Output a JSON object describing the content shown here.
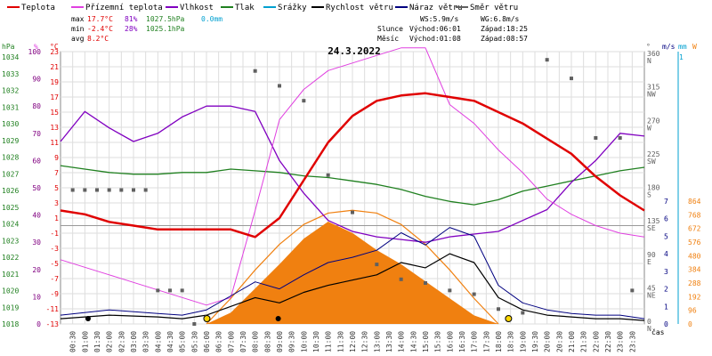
{
  "chart_data": {
    "type": "line",
    "title": "24.3.2022",
    "legend": [
      {
        "name": "Teplota",
        "color": "#e00000"
      },
      {
        "name": "Přízemní teplota",
        "color": "#e040e0"
      },
      {
        "name": "Vlhkost",
        "color": "#8000c0"
      },
      {
        "name": "Tlak",
        "color": "#208020"
      },
      {
        "name": "Srážky",
        "color": "#00a0d0"
      },
      {
        "name": "Rychlost větru",
        "color": "#000000"
      },
      {
        "name": "Náraz větru",
        "color": "#000080"
      },
      {
        "name": "Směr větru",
        "color": "#606060"
      }
    ],
    "stats": {
      "max": {
        "label": "max",
        "temp": "17.7°C",
        "hum": "81%",
        "press": "1027.5hPa",
        "rain": "0.0mm"
      },
      "min": {
        "label": "min",
        "temp": "-2.4°C",
        "hum": "28%",
        "press": "1025.1hPa"
      },
      "avg": {
        "label": "avg",
        "temp": "8.2°C"
      }
    },
    "wind_info": {
      "ws": "WS:5.9m/s",
      "wg": "WG:6.8m/s"
    },
    "sun_info": {
      "label": "Slunce",
      "rise": "Východ:06:01",
      "set": "Západ:18:25"
    },
    "moon_info": {
      "label": "Měsíc",
      "rise": "Východ:01:08",
      "set": "Západ:08:57"
    },
    "axes": {
      "hpa": {
        "unit": "hPa",
        "ticks": [
          "1034",
          "1033",
          "1032",
          "1031",
          "1030",
          "1029",
          "1028",
          "1027",
          "1026",
          "1025",
          "1024",
          "1023",
          "1022",
          "1021",
          "1020",
          "1019",
          "1018"
        ]
      },
      "pct": {
        "unit": "%",
        "ticks": [
          "100",
          "90",
          "80",
          "70",
          "60",
          "50",
          "40",
          "30",
          "20",
          "10",
          "0"
        ]
      },
      "temp": {
        "unit": "°C",
        "ticks": [
          "23",
          "21",
          "19",
          "17",
          "15",
          "13",
          "11",
          "9",
          "7",
          "5",
          "3",
          "1",
          "-1",
          "-3",
          "-5",
          "-7",
          "-9",
          "-11",
          "-13"
        ]
      },
      "dir": {
        "unit": "°",
        "ticks": [
          {
            "v": "360",
            "c": "N"
          },
          {
            "v": "315",
            "c": "NW"
          },
          {
            "v": "270",
            "c": "W"
          },
          {
            "v": "225",
            "c": "SW"
          },
          {
            "v": "180",
            "c": "S"
          },
          {
            "v": "135",
            "c": "SE"
          },
          {
            "v": "90",
            "c": "E"
          },
          {
            "v": "45",
            "c": "NE"
          },
          {
            "v": "0",
            "c": "N"
          }
        ]
      },
      "wind": {
        "unit": "m/s",
        "ticks": [
          "7",
          "6",
          "5",
          "4",
          "3",
          "2",
          "1",
          "0"
        ]
      },
      "rain": {
        "unit": "mm",
        "ticks": [
          "1"
        ]
      },
      "solar": {
        "unit": "W",
        "ticks": [
          "864",
          "768",
          "672",
          "576",
          "480",
          "384",
          "288",
          "192",
          "96",
          "0"
        ]
      },
      "time": {
        "label": "čas",
        "ticks": [
          "00:30",
          "01:00",
          "01:30",
          "02:00",
          "02:30",
          "03:00",
          "03:30",
          "04:00",
          "04:30",
          "05:00",
          "05:30",
          "06:00",
          "06:30",
          "07:00",
          "07:30",
          "08:00",
          "08:30",
          "09:00",
          "09:30",
          "10:00",
          "10:30",
          "11:00",
          "11:30",
          "12:00",
          "12:30",
          "13:00",
          "13:30",
          "14:00",
          "14:30",
          "15:00",
          "15:30",
          "16:00",
          "16:30",
          "17:00",
          "17:30",
          "18:00",
          "18:30",
          "19:00",
          "19:30",
          "20:00",
          "20:30",
          "21:00",
          "21:30",
          "22:00",
          "22:30",
          "23:00",
          "23:30"
        ]
      }
    },
    "series": {
      "temperature": {
        "name": "Teplota",
        "x": [
          0,
          1,
          2,
          3,
          4,
          5,
          6,
          7,
          8,
          9,
          10,
          11,
          12,
          13,
          14,
          15,
          16,
          17,
          18,
          19,
          20,
          21,
          22,
          23,
          24
        ],
        "y": [
          2.0,
          1.5,
          0.5,
          0.0,
          -0.5,
          -0.5,
          -0.5,
          -0.5,
          -1.5,
          1.0,
          6.0,
          11.0,
          14.5,
          16.5,
          17.2,
          17.5,
          17.0,
          16.5,
          15.0,
          13.5,
          11.5,
          9.5,
          6.5,
          4.0,
          2.0
        ]
      },
      "ground_temperature": {
        "name": "Přízemní teplota",
        "x": [
          0,
          1,
          2,
          3,
          4,
          5,
          6,
          7,
          8,
          9,
          10,
          11,
          12,
          13,
          14,
          15,
          16,
          17,
          18,
          19,
          20,
          21,
          22,
          23,
          24
        ],
        "y": [
          -4.5,
          -5.5,
          -6.5,
          -7.5,
          -8.5,
          -9.5,
          -10.5,
          -9.5,
          2.0,
          14.0,
          18.0,
          20.5,
          21.5,
          22.5,
          23.5,
          23.5,
          16.0,
          13.5,
          10.0,
          7.0,
          3.5,
          1.5,
          0.0,
          -1.0,
          -1.5
        ]
      },
      "humidity": {
        "name": "Vlhkost",
        "x": [
          0,
          1,
          2,
          3,
          4,
          5,
          6,
          7,
          8,
          9,
          10,
          11,
          12,
          13,
          14,
          15,
          16,
          17,
          18,
          19,
          20,
          21,
          22,
          23,
          24
        ],
        "y": [
          67,
          78,
          72,
          67,
          70,
          76,
          80,
          80,
          78,
          60,
          48,
          38,
          34,
          32,
          31,
          30,
          32,
          33,
          34,
          38,
          42,
          52,
          60,
          70,
          69
        ]
      },
      "pressure": {
        "name": "Tlak",
        "x": [
          0,
          1,
          2,
          3,
          4,
          5,
          6,
          7,
          8,
          9,
          10,
          11,
          12,
          13,
          14,
          15,
          16,
          17,
          18,
          19,
          20,
          21,
          22,
          23,
          24
        ],
        "y": [
          1027.3,
          1027.1,
          1026.9,
          1026.8,
          1026.8,
          1026.9,
          1026.9,
          1027.1,
          1027.0,
          1026.9,
          1026.7,
          1026.6,
          1026.4,
          1026.2,
          1025.9,
          1025.5,
          1025.2,
          1025.0,
          1025.3,
          1025.8,
          1026.1,
          1026.4,
          1026.7,
          1027.0,
          1027.2
        ]
      },
      "wind_speed": {
        "name": "Rychlost větru",
        "x": [
          0,
          2,
          4,
          5,
          6,
          7,
          8,
          9,
          10,
          11,
          12,
          13,
          14,
          15,
          16,
          17,
          18,
          19,
          20,
          21,
          22,
          23,
          24
        ],
        "y": [
          0.3,
          0.5,
          0.4,
          0.3,
          0.5,
          1.0,
          1.5,
          1.2,
          1.8,
          2.2,
          2.5,
          2.8,
          3.5,
          3.2,
          4.0,
          3.5,
          1.5,
          0.8,
          0.5,
          0.4,
          0.3,
          0.3,
          0.2
        ]
      },
      "wind_gust": {
        "name": "Náraz větru",
        "x": [
          0,
          2,
          4,
          5,
          6,
          7,
          8,
          9,
          10,
          11,
          12,
          13,
          14,
          15,
          16,
          17,
          18,
          19,
          20,
          21,
          22,
          23,
          24
        ],
        "y": [
          0.5,
          0.8,
          0.6,
          0.5,
          0.8,
          1.6,
          2.4,
          2.0,
          2.8,
          3.5,
          3.8,
          4.2,
          5.2,
          4.5,
          5.5,
          5.0,
          2.2,
          1.2,
          0.8,
          0.6,
          0.5,
          0.5,
          0.3
        ]
      },
      "solar": {
        "name": "Solar",
        "x": [
          6,
          7,
          8,
          9,
          10,
          11,
          12,
          13,
          14,
          15,
          16,
          17,
          18
        ],
        "y": [
          0,
          80,
          250,
          420,
          600,
          720,
          640,
          520,
          420,
          300,
          180,
          60,
          0
        ]
      },
      "solar_max": {
        "name": "Solar max",
        "x": [
          6,
          7,
          8,
          9,
          10,
          11,
          12,
          13,
          14,
          15,
          16,
          17,
          18
        ],
        "y": [
          0,
          180,
          380,
          560,
          700,
          780,
          800,
          780,
          700,
          560,
          380,
          180,
          0
        ]
      },
      "wind_dir": {
        "name": "Směr větru",
        "x": [
          0.5,
          1.0,
          1.5,
          2.0,
          2.5,
          3.0,
          3.5,
          4.0,
          4.5,
          5.0,
          5.5,
          6.0,
          8.0,
          9.0,
          10.0,
          11.0,
          12.0,
          13.0,
          14.0,
          15.0,
          16.0,
          17.0,
          18.0,
          19.0,
          20.0,
          21.0,
          22.0,
          23.0,
          23.5
        ],
        "y": [
          180,
          180,
          180,
          180,
          180,
          180,
          180,
          45,
          45,
          45,
          0,
          10,
          340,
          320,
          300,
          200,
          150,
          80,
          60,
          55,
          45,
          40,
          20,
          15,
          355,
          330,
          250,
          250,
          45
        ]
      }
    }
  }
}
